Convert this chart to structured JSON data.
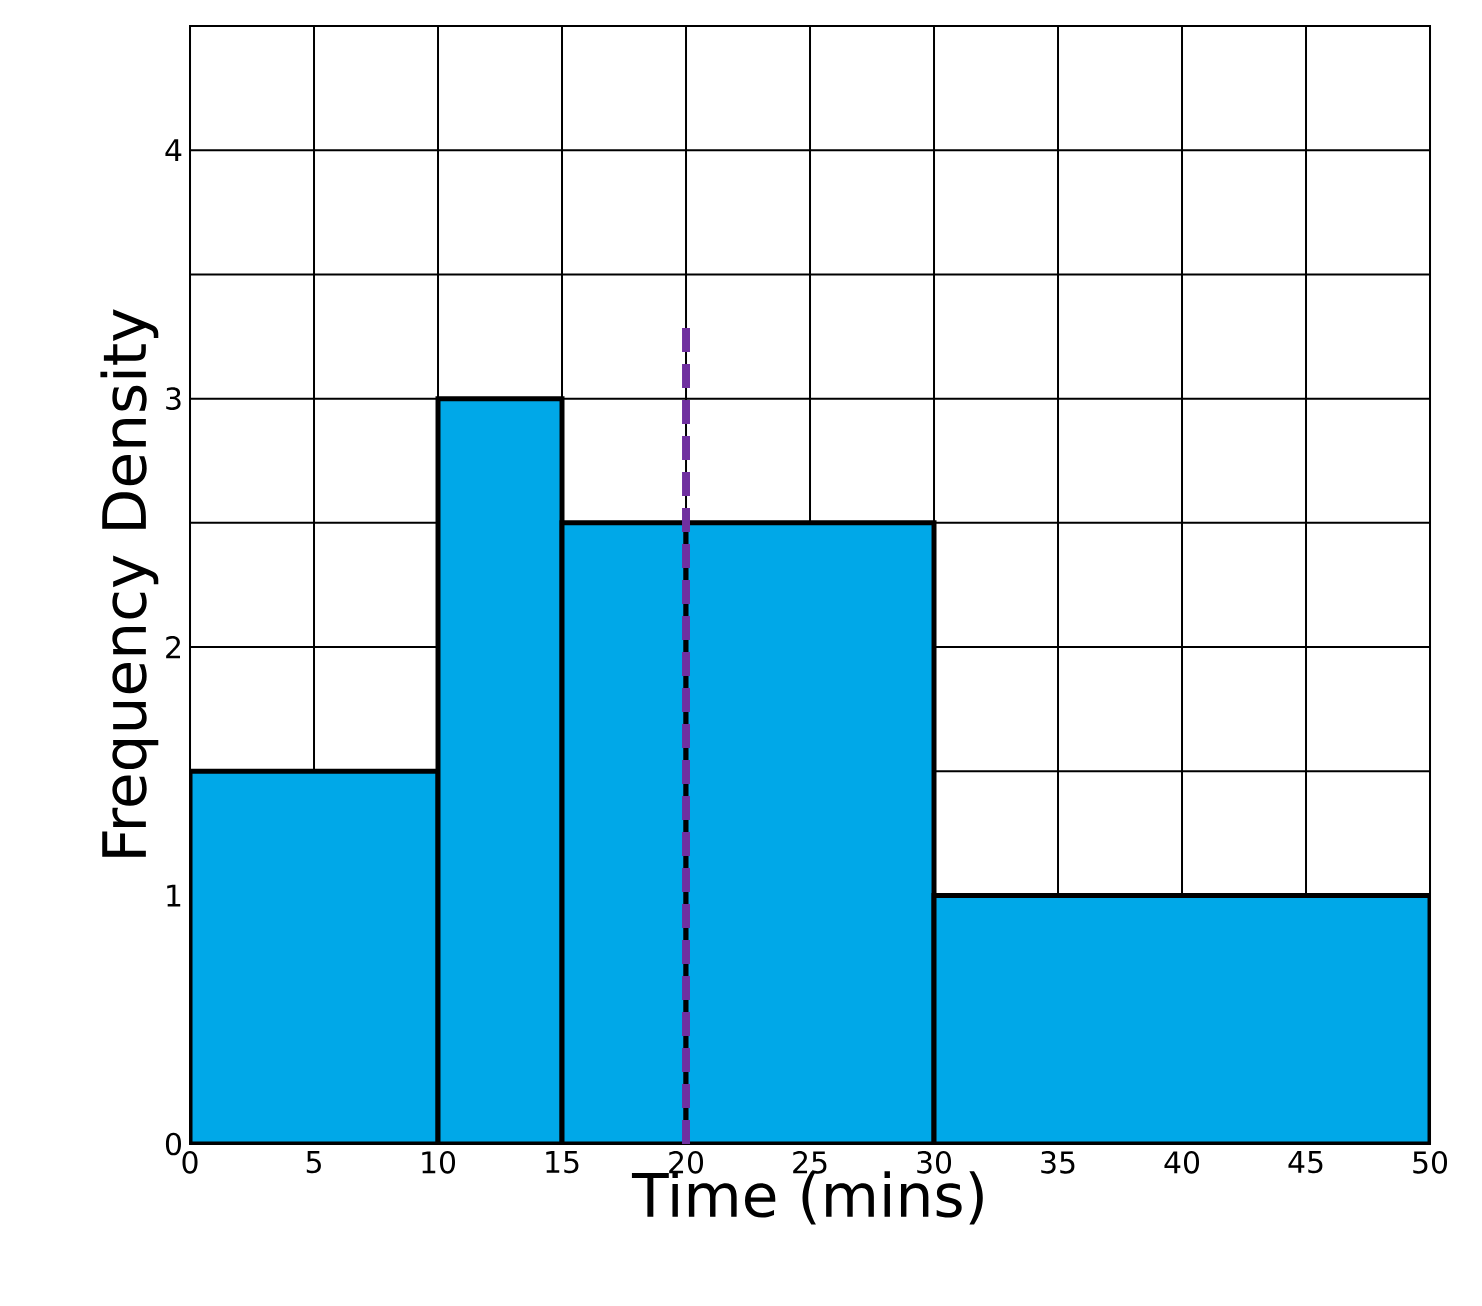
{
  "chart_data": {
    "type": "histogram",
    "xlabel": "Time (mins)",
    "ylabel": "Frequency Density",
    "bins": [
      0,
      10,
      15,
      20,
      30,
      50
    ],
    "values": [
      1.5,
      3,
      2.5,
      2.5,
      1
    ],
    "colors": [
      "#00a8e8",
      "#00a8e8",
      "#00a8e8",
      "#00a8e8",
      "#00a8e8"
    ],
    "xlim": [
      0,
      50
    ],
    "ylim": [
      0,
      4.5
    ],
    "xticks": [
      0,
      5,
      10,
      15,
      20,
      25,
      30,
      35,
      40,
      45,
      50
    ],
    "yticks": [
      0,
      {
        "value": 0.5,
        "label": null
      },
      1,
      {
        "value": 1.5,
        "label": null
      },
      2,
      {
        "value": 2.5,
        "label": null
      },
      3,
      {
        "value": 3.5,
        "label": null
      },
      4,
      {
        "value": 4.5,
        "label": null
      }
    ],
    "grid": true,
    "ref_lines": [
      {
        "axis": "x",
        "value": 20,
        "color": "#7030a0",
        "line_style": "dashed"
      }
    ]
  }
}
